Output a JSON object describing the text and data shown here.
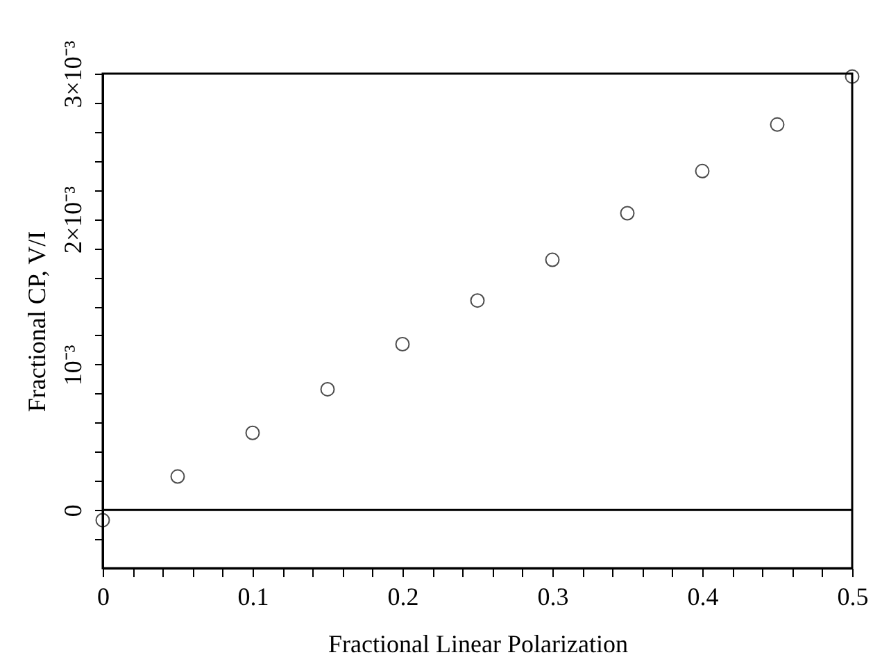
{
  "chart_data": {
    "type": "scatter",
    "xlabel": "Fractional Linear Polarization",
    "ylabel": "Fractional CP, V/I",
    "x": [
      0,
      0.05,
      0.1,
      0.15,
      0.2,
      0.25,
      0.3,
      0.35,
      0.4,
      0.45,
      0.5
    ],
    "series": [
      {
        "color": "#000000",
        "values": [
          -7e-05,
          0.00023,
          0.00053,
          0.00083,
          0.00114,
          0.00144,
          0.00172,
          0.00204,
          0.00233,
          0.00265,
          0.00298
        ]
      }
    ],
    "marker": "circle",
    "grid": false,
    "xlim": [
      0,
      0.5
    ],
    "ylim": [
      -0.0004,
      0.003
    ],
    "xticks": [
      0,
      {
        "value": 0.02,
        "label": null
      },
      {
        "value": 0.04,
        "label": null
      },
      {
        "value": 0.06,
        "label": null
      },
      {
        "value": 0.08,
        "label": null
      },
      0.1,
      {
        "value": 0.12,
        "label": null
      },
      {
        "value": 0.14,
        "label": null
      },
      {
        "value": 0.16,
        "label": null
      },
      {
        "value": 0.18,
        "label": null
      },
      0.2,
      {
        "value": 0.22,
        "label": null
      },
      {
        "value": 0.24,
        "label": null
      },
      {
        "value": 0.26,
        "label": null
      },
      {
        "value": 0.28,
        "label": null
      },
      0.3,
      {
        "value": 0.32,
        "label": null
      },
      {
        "value": 0.34,
        "label": null
      },
      {
        "value": 0.36,
        "label": null
      },
      {
        "value": 0.38,
        "label": null
      },
      0.4,
      {
        "value": 0.42,
        "label": null
      },
      {
        "value": 0.44,
        "label": null
      },
      {
        "value": 0.46,
        "label": null
      },
      {
        "value": 0.48,
        "label": null
      },
      0.5
    ],
    "yticks": [
      {
        "value": -0.0002,
        "label": null
      },
      0,
      {
        "value": 0.0002,
        "label": null
      },
      {
        "value": 0.0004,
        "label": null
      },
      {
        "value": 0.0006,
        "label": null
      },
      {
        "value": 0.0008,
        "label": null
      },
      {
        "value": 0.001,
        "label": "10⁻³"
      },
      {
        "value": 0.0012,
        "label": null
      },
      {
        "value": 0.0014,
        "label": null
      },
      {
        "value": 0.0016,
        "label": null
      },
      {
        "value": 0.0018,
        "label": null
      },
      {
        "value": 0.002,
        "label": "2×10⁻³"
      },
      {
        "value": 0.0022,
        "label": null
      },
      {
        "value": 0.0024,
        "label": null
      },
      {
        "value": 0.0026,
        "label": null
      },
      {
        "value": 0.0028,
        "label": null
      },
      {
        "value": 0.003,
        "label": "3×10⁻³"
      }
    ],
    "ref_lines": [
      {
        "axis": "y",
        "value": 0
      }
    ]
  }
}
